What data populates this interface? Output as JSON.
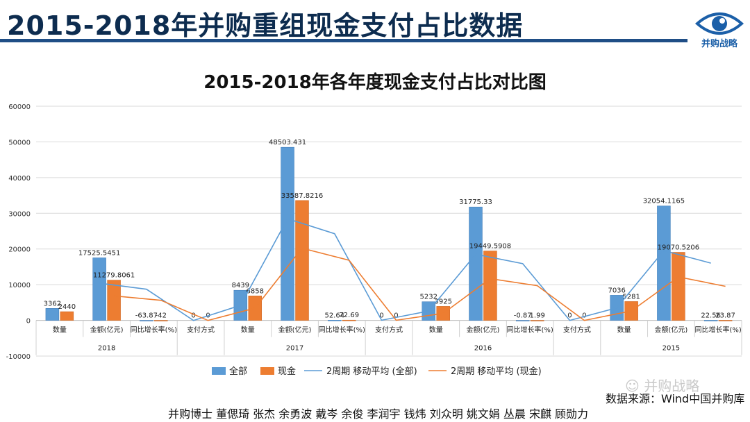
{
  "header": {
    "title": "2015-2018年并购重组现金支付占比数据"
  },
  "logo": {
    "text": "并购战略",
    "icon": "eye-icon",
    "color": "#1b5fa8"
  },
  "watermark": {
    "text": "并购战略",
    "icon": "wechat-icon"
  },
  "source": "数据来源：Wind中国并购库",
  "authors": "并购博士 董偲琦 张杰 余勇波 戴岑 余俊 李润宇 钱炜 刘众明 姚文娟 丛晨 宋麒 顾勋力",
  "colors": {
    "all": "#5b9bd5",
    "cash": "#ed7d31",
    "header_rule": "#1f4e86",
    "title": "#0d2c4f"
  },
  "chart_data": {
    "type": "bar",
    "title": "2015-2018年各年度现金支付占比对比图",
    "ylim": [
      -10000,
      60000
    ],
    "yticks": [
      "-10000",
      "0",
      "10000",
      "20000",
      "30000",
      "40000",
      "50000",
      "60000"
    ],
    "grid": true,
    "legend_position": "bottom",
    "categories": [
      "数量",
      "金额(亿元)",
      "同比增长率(%)",
      "支付方式",
      "数量",
      "金额(亿元)",
      "同比增长率(%)",
      "支付方式",
      "数量",
      "金额(亿元)",
      "同比增长率(%)",
      "支付方式",
      "数量",
      "金额(亿元)",
      "同比增长率(%)"
    ],
    "groups": [
      {
        "label": "2018",
        "start": 0,
        "end": 2
      },
      {
        "label": "2017",
        "start": 4,
        "end": 6
      },
      {
        "label": "2016",
        "start": 8,
        "end": 10
      },
      {
        "label": "2015",
        "start": 12,
        "end": 14
      }
    ],
    "series": [
      {
        "name": "全部",
        "type": "bar",
        "values": [
          3362,
          17525.5451,
          -63.87,
          0,
          8439,
          48503.431,
          52.64,
          0,
          5232,
          31775.33,
          -0.87,
          0,
          7036,
          32054.1165,
          22.56
        ],
        "labels": [
          "3362",
          "17525.5451",
          "-63.87",
          "0",
          "8439",
          "48503.431",
          "52.64",
          "0",
          "5232",
          "31775.33",
          "-0.87",
          "0",
          "7036",
          "32054.1165",
          "22.56"
        ]
      },
      {
        "name": "现金",
        "type": "bar",
        "values": [
          2440,
          11279.8061,
          -42,
          0,
          6858,
          33587.8216,
          72.69,
          0,
          3925,
          19449.5908,
          1.99,
          0,
          5281,
          19070.5206,
          23.87
        ],
        "labels": [
          "2440",
          "11279.8061",
          "-42",
          "0",
          "6858",
          "33587.8216",
          "72.69",
          "0",
          "3925",
          "19449.5908",
          "1.99",
          "0",
          "5281",
          "19070.5206",
          "23.87"
        ]
      },
      {
        "name": "2周期 移动平均 (全部)",
        "type": "line"
      },
      {
        "name": "2周期 移动平均 (现金)",
        "type": "line"
      }
    ]
  }
}
